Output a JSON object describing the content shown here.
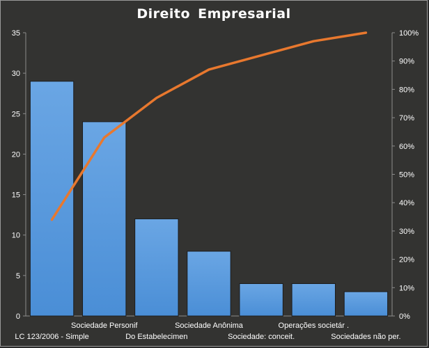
{
  "chart_data": {
    "type": "bar",
    "title": "Direito  Empresarial",
    "categories": [
      "LC 123/2006 - Simple",
      "Sociedade Personif",
      "Do Estabelecimen",
      "Sociedade Anônima",
      "Sociedade: conceit.",
      "Operações societár .",
      "Sociedades não per."
    ],
    "series": [
      {
        "type": "bar",
        "values": [
          29,
          24,
          12,
          8,
          4,
          4,
          3
        ]
      },
      {
        "type": "line",
        "axis": "right",
        "values": [
          34,
          63,
          77,
          87,
          92,
          97,
          100
        ]
      }
    ],
    "y_ticks": [
      "0",
      "5",
      "10",
      "15",
      "20",
      "25",
      "30",
      "35"
    ],
    "y2_ticks": [
      "0%",
      "10%",
      "20%",
      "30%",
      "40%",
      "50%",
      "60%",
      "70%",
      "80%",
      "90%",
      "100%"
    ],
    "ylim": [
      0,
      35
    ],
    "y2lim": [
      0,
      100
    ],
    "grid": false,
    "colors": {
      "background": "#333331",
      "bar_fill": "#4a8ed6",
      "bar_stroke": "#1c1c1c",
      "line": "#e8782e",
      "text": "#ffffff"
    }
  }
}
